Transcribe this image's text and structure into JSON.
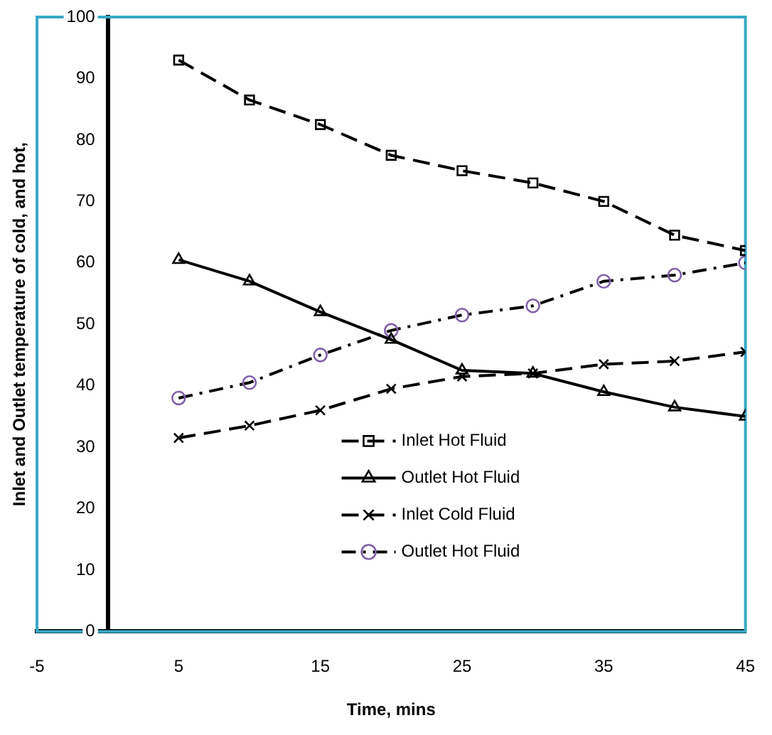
{
  "chart_data": {
    "type": "line",
    "xlabel": "Time, mins",
    "ylabel": "Inlet and Outlet temperature of cold, and hot,",
    "x": [
      5,
      10,
      15,
      20,
      25,
      30,
      35,
      40,
      45
    ],
    "xlim": [
      -5,
      45
    ],
    "xticks": [
      -5,
      5,
      15,
      25,
      35,
      45
    ],
    "ylim": [
      0,
      100
    ],
    "yticks": [
      0,
      10,
      20,
      30,
      40,
      50,
      60,
      70,
      80,
      90,
      100
    ],
    "grid": false,
    "legend": "center",
    "series": [
      {
        "name": "Inlet Hot Fluid",
        "color": "#000000",
        "marker": "square",
        "line_style": "dashed",
        "values": [
          93,
          86.5,
          82.5,
          77.5,
          75,
          73,
          70,
          64.5,
          62
        ]
      },
      {
        "name": "Outlet Hot Fluid",
        "color": "#000000",
        "marker": "triangle",
        "line_style": "solid",
        "values": [
          60.5,
          57,
          52,
          47.5,
          42.5,
          42,
          39,
          36.5,
          35
        ]
      },
      {
        "name": "Inlet Cold Fluid",
        "color": "#000000",
        "marker": "cross",
        "line_style": "dashed",
        "values": [
          31.5,
          33.5,
          36,
          39.5,
          41.5,
          42,
          43.5,
          44,
          45.5
        ]
      },
      {
        "name": "Outlet Hot Fluid",
        "color": "#8060a8",
        "marker": "circle",
        "line_style": "dotted",
        "values": [
          38,
          40.5,
          45,
          49,
          51.5,
          53,
          57,
          58,
          60
        ]
      }
    ]
  }
}
